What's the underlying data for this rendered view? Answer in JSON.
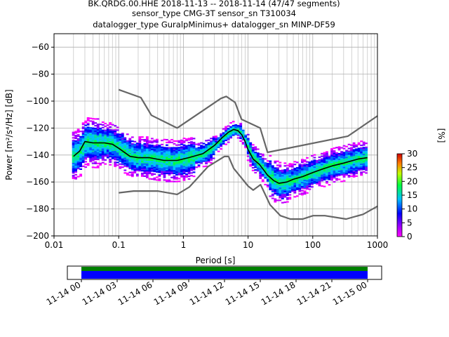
{
  "title_lines": [
    "BK.QRDG.00.HHE   2018-11-13 -- 2018-11-14  (47/47 segments)",
    "sensor_type CMG-3T sensor_sn T310034",
    "datalogger_type GuralpMinimus+ datalogger_sn MINP-DF59"
  ],
  "chart_data": {
    "type": "heatmap",
    "xlabel": "Period [s]",
    "ylabel": "Power [m²/s⁴/Hz] [dB]",
    "x_scale": "log",
    "xlim": [
      0.01,
      1000
    ],
    "ylim": [
      -200,
      -50
    ],
    "grid": true,
    "x_ticks": [
      0.01,
      0.1,
      1,
      10,
      100,
      1000
    ],
    "x_tick_labels": [
      "0.01",
      "0.1",
      "1",
      "10",
      "100",
      "1000"
    ],
    "y_ticks": [
      -200,
      -180,
      -160,
      -140,
      -120,
      -100,
      -80,
      -60
    ],
    "y_tick_labels": [
      "−200",
      "−180",
      "−160",
      "−140",
      "−120",
      "−100",
      "−80",
      "−60"
    ],
    "colorbar": {
      "label": "[%]",
      "min": 0,
      "max": 30,
      "ticks": [
        0,
        5,
        10,
        15,
        20,
        25,
        30
      ],
      "tick_labels": [
        "0",
        "5",
        "10",
        "15",
        "20",
        "25",
        "30"
      ]
    },
    "series": [
      {
        "role": "noise-model-high",
        "color": "#666666",
        "x": [
          0.1,
          0.22,
          0.32,
          0.8,
          3.8,
          4.6,
          6.3,
          7.9,
          15.4,
          20,
          350,
          1000
        ],
        "y": [
          -91.5,
          -97.4,
          -110.5,
          -120,
          -98,
          -96.5,
          -101,
          -113.5,
          -120,
          -138,
          -126,
          -111
        ]
      },
      {
        "role": "noise-model-low",
        "color": "#666666",
        "x": [
          0.1,
          0.17,
          0.4,
          0.8,
          1.24,
          2.4,
          4.3,
          5,
          6,
          10,
          12,
          15.6,
          21.9,
          31.6,
          45,
          70,
          101,
          154,
          328,
          600,
          1000
        ],
        "y": [
          -168,
          -166.7,
          -166.7,
          -169.2,
          -163.7,
          -148.6,
          -141.1,
          -141.1,
          -149.9,
          -163,
          -166,
          -162,
          -177,
          -185,
          -187.5,
          -187.5,
          -185,
          -185,
          -187.5,
          -184,
          -178
        ]
      },
      {
        "role": "mode",
        "color": "#000000",
        "x": [
          0.02,
          0.025,
          0.03,
          0.04,
          0.06,
          0.08,
          0.1,
          0.15,
          0.2,
          0.3,
          0.5,
          0.8,
          1.2,
          2,
          3,
          4,
          5,
          6,
          7,
          8,
          9,
          10,
          12,
          15,
          18,
          20,
          25,
          30,
          40,
          50,
          70,
          100,
          150,
          200,
          300,
          500,
          700
        ],
        "y": [
          -141,
          -137,
          -130,
          -131,
          -131,
          -132,
          -135,
          -141,
          -142,
          -142,
          -144,
          -144,
          -142,
          -139,
          -133,
          -127,
          -123,
          -121,
          -122,
          -125,
          -130,
          -136,
          -143,
          -147,
          -152,
          -155,
          -159,
          -161,
          -160,
          -158,
          -156,
          -153,
          -150,
          -148,
          -146,
          -143,
          -142
        ]
      }
    ]
  },
  "time_axis": {
    "labels": [
      "11-14 00",
      "11-14 03",
      "11-14 06",
      "11-14 09",
      "11-14 12",
      "11-14 15",
      "11-14 18",
      "11-14 21",
      "11-15 00"
    ],
    "coverage_color": "#0000ff",
    "quality_color": "#008000"
  }
}
